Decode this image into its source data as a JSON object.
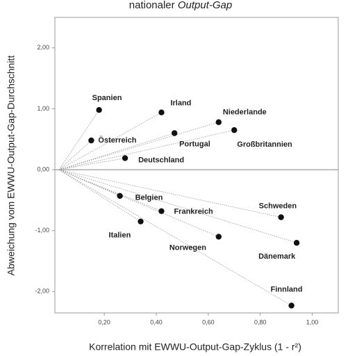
{
  "chart_data": {
    "type": "scatter",
    "title": [
      "nationaler",
      "Output-Gap"
    ],
    "x_label": "Korrelation mit EWWU-Output-Gap-Zyklus (1 - r²)",
    "y_label": "Abweichung vom EWWU-Output-Gap-Durchschnitt",
    "xlim": [
      0.01,
      1.1
    ],
    "ylim": [
      -2.35,
      2.5
    ],
    "xticks": [
      {
        "value": 0.2,
        "label": "0,20"
      },
      {
        "value": 0.4,
        "label": "0,40"
      },
      {
        "value": 0.6,
        "label": "0,60"
      },
      {
        "value": 0.8,
        "label": "0,80"
      },
      {
        "value": 1.0,
        "label": "1,00"
      }
    ],
    "yticks": [
      {
        "value": 2,
        "label": "2,00"
      },
      {
        "value": 1,
        "label": "1,00"
      },
      {
        "value": 0,
        "label": "0,00"
      },
      {
        "value": -1,
        "label": "-1,00"
      },
      {
        "value": -2,
        "label": "-2,00"
      }
    ],
    "color": "#111111",
    "labels": [
      "Spanien",
      "Irland",
      "Niederlande",
      "Großbritannien",
      "Portugal",
      "Österreich",
      "Deutschland",
      "Belgien",
      "Frankreich",
      "Italien",
      "Norwegen",
      "Schweden",
      "Dänemark",
      "Finnland"
    ],
    "x": [
      0.18,
      0.42,
      0.64,
      0.7,
      0.47,
      0.15,
      0.28,
      0.26,
      0.42,
      0.34,
      0.64,
      0.88,
      0.94,
      0.92
    ],
    "y": [
      0.98,
      0.94,
      0.78,
      0.65,
      0.6,
      0.48,
      0.19,
      -0.43,
      -0.68,
      -0.85,
      -1.1,
      -0.78,
      -1.2,
      -2.23
    ]
  }
}
